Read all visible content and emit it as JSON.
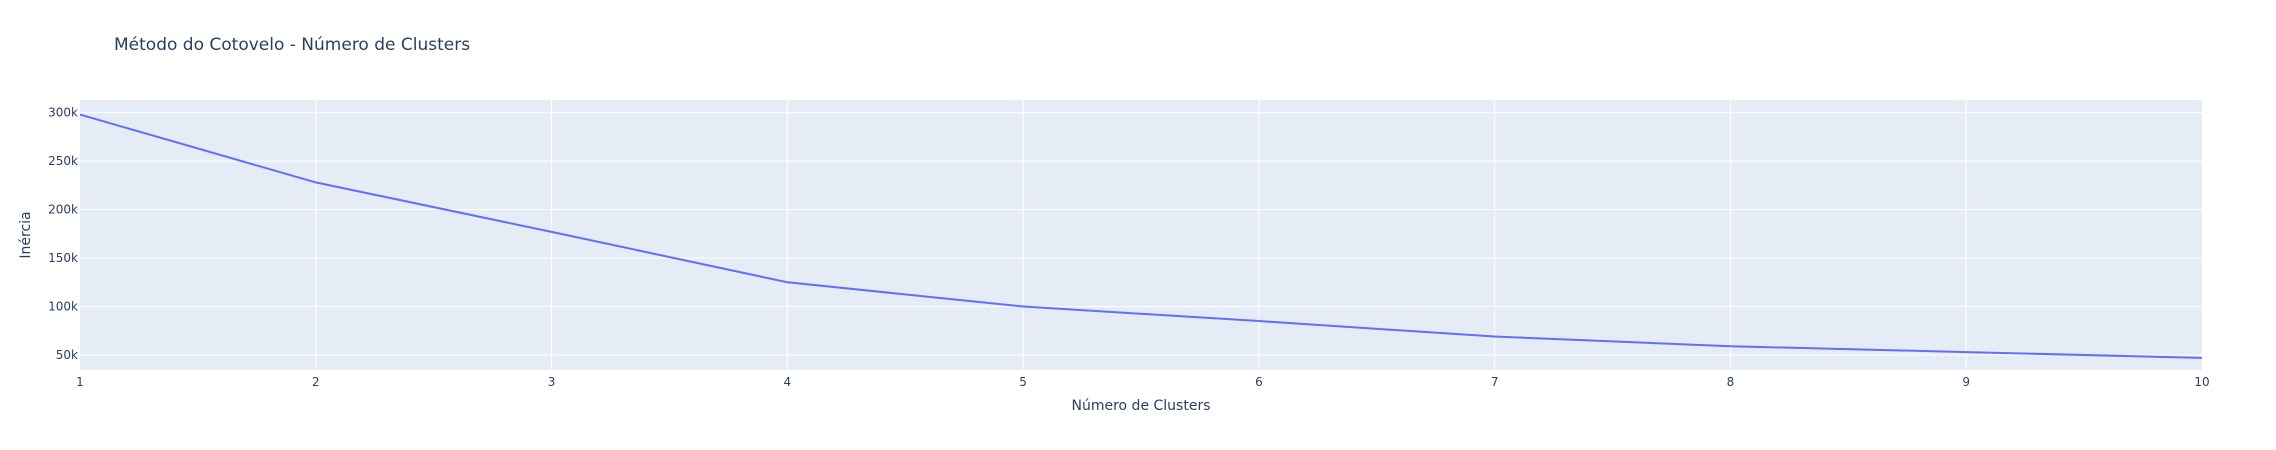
{
  "chart_data": {
    "type": "line",
    "title": "Método do Cotovelo - Número de Clusters",
    "xlabel": "Número de Clusters",
    "ylabel": "Inércia",
    "x": [
      1,
      2,
      3,
      4,
      5,
      6,
      7,
      8,
      9,
      10
    ],
    "x_ticks": [
      "1",
      "2",
      "3",
      "4",
      "5",
      "6",
      "7",
      "8",
      "9",
      "10"
    ],
    "xlim": [
      1,
      10
    ],
    "y_ticks": [
      {
        "value": 50000,
        "label": "50k"
      },
      {
        "value": 100000,
        "label": "100k"
      },
      {
        "value": 150000,
        "label": "150k"
      },
      {
        "value": 200000,
        "label": "200k"
      },
      {
        "value": 250000,
        "label": "250k"
      },
      {
        "value": 300000,
        "label": "300k"
      }
    ],
    "ylim": [
      34500,
      313000
    ],
    "grid": true,
    "series": [
      {
        "values": [
          298000,
          228000,
          177000,
          125000,
          100000,
          85000,
          69000,
          59000,
          53000,
          47000
        ],
        "color": "#636efa"
      }
    ],
    "colors": {
      "plot_background": "#e5ecf6",
      "text": "#2a3f5f",
      "grid": "#ffffff"
    }
  }
}
